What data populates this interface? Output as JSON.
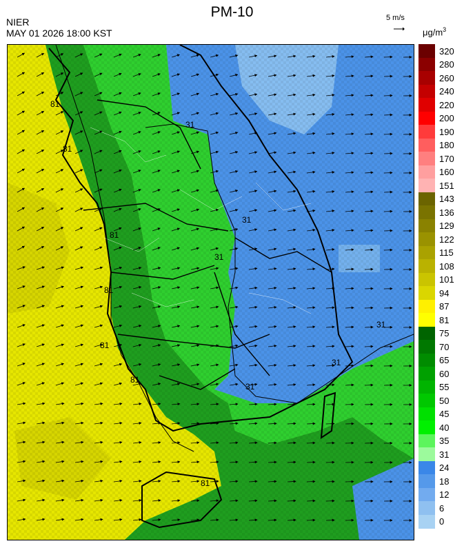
{
  "header": {
    "title": "PM-10",
    "agency": "NIER",
    "datetime": "MAY 01 2026 18:00 KST",
    "wind_scale_label": "5 m/s",
    "unit_base": "μg/m",
    "unit_exp": "3"
  },
  "legend": {
    "levels": [
      "320",
      "280",
      "260",
      "240",
      "220",
      "200",
      "190",
      "180",
      "170",
      "160",
      "151",
      "143",
      "136",
      "129",
      "122",
      "115",
      "108",
      "101",
      "94",
      "87",
      "81",
      "75",
      "70",
      "65",
      "60",
      "55",
      "50",
      "45",
      "40",
      "35",
      "31",
      "24",
      "18",
      "12",
      "6",
      "0"
    ],
    "colors": [
      "#6b0000",
      "#8b0000",
      "#a80000",
      "#c40000",
      "#e00000",
      "#ff0000",
      "#ff3b3b",
      "#ff5e5e",
      "#ff7f7f",
      "#ff9f9f",
      "#ffb3b3",
      "#6b6400",
      "#7a7300",
      "#8a8200",
      "#9a9200",
      "#aaa200",
      "#bab200",
      "#cac400",
      "#dad600",
      "#fff000",
      "#ffff00",
      "#006400",
      "#007800",
      "#008c00",
      "#00a000",
      "#00b400",
      "#00c800",
      "#00e000",
      "#00f000",
      "#5cf55c",
      "#9cfa9c",
      "#3a87e8",
      "#5599ea",
      "#72abef",
      "#8fc0f0",
      "#a8d2f3"
    ]
  },
  "map": {
    "contour_labels": [
      "81",
      "81",
      "81",
      "81",
      "81",
      "81",
      "81",
      "31",
      "31",
      "31",
      "31",
      "31",
      "31"
    ]
  }
}
